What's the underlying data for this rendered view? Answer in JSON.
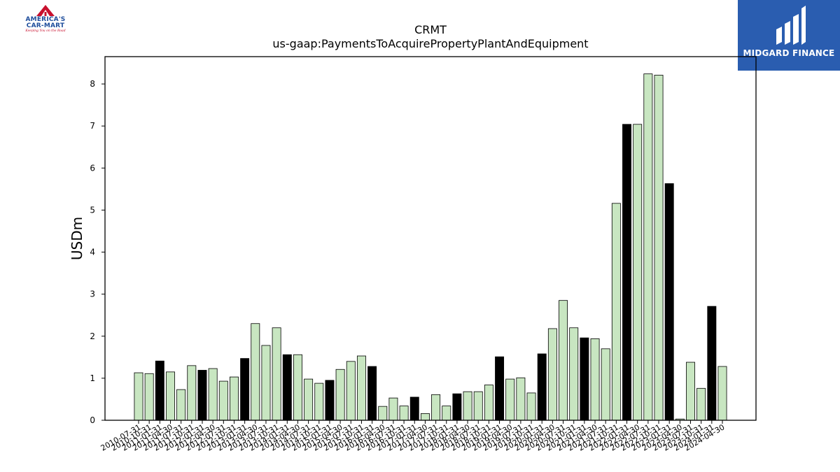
{
  "logos": {
    "left": {
      "name": "America's Car-Mart",
      "line1": "AMERICA'S",
      "line2": "CAR-MART",
      "tagline": "Keeping You on the Road",
      "colors": {
        "blue": "#1f4e9c",
        "red": "#c8102e"
      }
    },
    "right": {
      "name": "MIDGARD FINANCE",
      "background": "#2a5db0",
      "text_color": "#ffffff"
    }
  },
  "chart_data": {
    "type": "bar",
    "title": "CRMT",
    "subtitle": "us-gaap:PaymentsToAcquirePropertyPlantAndEquipment",
    "xlabel": "",
    "ylabel": "USDm",
    "ylim": [
      0,
      8.65
    ],
    "yticks": [
      0,
      1,
      2,
      3,
      4,
      5,
      6,
      7,
      8
    ],
    "grid": false,
    "colors": {
      "quarter": "#c8e6c1",
      "fiscal_year_end": "#000000",
      "edge": "#000000"
    },
    "categories": [
      "2010-07-31",
      "2010-10-31",
      "2011-01-31",
      "2011-04-30",
      "2011-07-31",
      "2011-10-31",
      "2012-01-31",
      "2012-04-30",
      "2012-07-31",
      "2012-10-31",
      "2013-01-31",
      "2013-04-30",
      "2013-07-31",
      "2013-10-31",
      "2014-01-31",
      "2014-04-30",
      "2014-07-31",
      "2014-10-31",
      "2015-01-31",
      "2015-04-30",
      "2015-07-31",
      "2015-10-31",
      "2016-01-31",
      "2016-04-30",
      "2016-07-31",
      "2016-10-31",
      "2017-01-31",
      "2017-04-30",
      "2017-07-31",
      "2017-10-31",
      "2018-01-31",
      "2018-04-30",
      "2018-07-31",
      "2018-10-31",
      "2019-01-31",
      "2019-04-30",
      "2019-07-31",
      "2019-10-31",
      "2020-01-31",
      "2020-04-30",
      "2020-07-31",
      "2020-10-31",
      "2021-01-31",
      "2021-04-30",
      "2021-07-31",
      "2021-10-31",
      "2022-01-31",
      "2022-04-30",
      "2022-07-31",
      "2022-10-31",
      "2023-01-31",
      "2023-04-30",
      "2023-07-31",
      "2023-10-31",
      "2024-01-31",
      "2024-04-30"
    ],
    "values": [
      1.13,
      1.11,
      1.41,
      1.15,
      0.73,
      1.3,
      1.19,
      1.23,
      0.93,
      1.03,
      1.47,
      2.3,
      1.78,
      2.2,
      1.56,
      1.56,
      0.98,
      0.88,
      0.95,
      1.21,
      1.4,
      1.53,
      1.28,
      0.33,
      0.53,
      0.34,
      0.55,
      0.16,
      0.61,
      0.34,
      0.63,
      0.68,
      0.68,
      0.84,
      1.51,
      0.98,
      1.01,
      0.65,
      1.58,
      2.18,
      2.85,
      2.2,
      1.96,
      1.94,
      1.7,
      5.16,
      7.04,
      7.04,
      8.24,
      8.21,
      5.63,
      0.03,
      1.38,
      0.76,
      2.71,
      1.28
    ],
    "fiscal_year_end": [
      false,
      false,
      true,
      false,
      false,
      false,
      true,
      false,
      false,
      false,
      true,
      false,
      false,
      false,
      true,
      false,
      false,
      false,
      true,
      false,
      false,
      false,
      true,
      false,
      false,
      false,
      true,
      false,
      false,
      false,
      true,
      false,
      false,
      false,
      true,
      false,
      false,
      false,
      true,
      false,
      false,
      false,
      true,
      false,
      false,
      false,
      true,
      false,
      false,
      false,
      true,
      false,
      false,
      false,
      true,
      false
    ]
  }
}
